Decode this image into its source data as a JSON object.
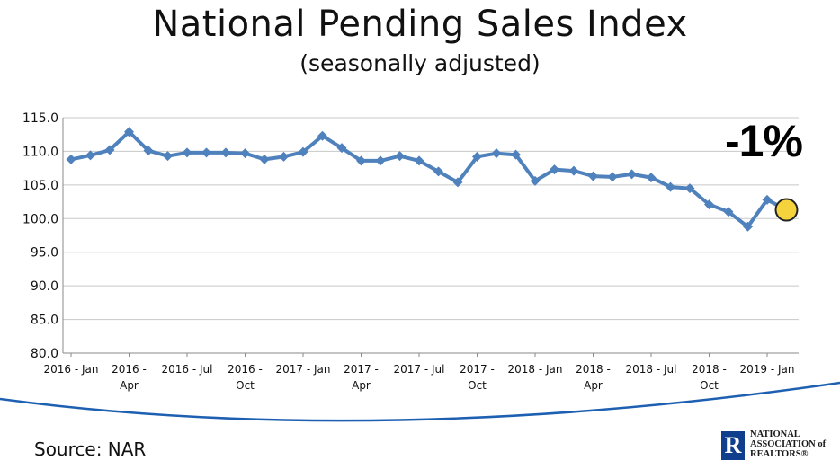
{
  "header": {
    "title": "National Pending Sales Index",
    "subtitle": "(seasonally adjusted)"
  },
  "annotation": "-1%",
  "footer": {
    "source": "Source: NAR",
    "logo_text": "NATIONAL\nASSOCIATION of\nREALTORS®",
    "logo_mark": "R"
  },
  "colors": {
    "line": "#4f81bd",
    "highlight_marker": "#f5d33c",
    "grid": "#c8c8c8"
  },
  "chart_data": {
    "type": "line",
    "title": "National Pending Sales Index",
    "subtitle": "(seasonally adjusted)",
    "ylim": [
      80,
      115
    ],
    "yticks": [
      "80.0",
      "85.0",
      "90.0",
      "95.0",
      "100.0",
      "105.0",
      "110.0",
      "115.0"
    ],
    "xtick_labels": [
      {
        "index": 0,
        "lines": [
          "2016 - Jan"
        ]
      },
      {
        "index": 3,
        "lines": [
          "2016 -",
          "Apr"
        ]
      },
      {
        "index": 6,
        "lines": [
          "2016 - Jul"
        ]
      },
      {
        "index": 9,
        "lines": [
          "2016 -",
          "Oct"
        ]
      },
      {
        "index": 12,
        "lines": [
          "2017 - Jan"
        ]
      },
      {
        "index": 15,
        "lines": [
          "2017 -",
          "Apr"
        ]
      },
      {
        "index": 18,
        "lines": [
          "2017 - Jul"
        ]
      },
      {
        "index": 21,
        "lines": [
          "2017 -",
          "Oct"
        ]
      },
      {
        "index": 24,
        "lines": [
          "2018 - Jan"
        ]
      },
      {
        "index": 27,
        "lines": [
          "2018 -",
          "Apr"
        ]
      },
      {
        "index": 30,
        "lines": [
          "2018 - Jul"
        ]
      },
      {
        "index": 33,
        "lines": [
          "2018 -",
          "Oct"
        ]
      },
      {
        "index": 36,
        "lines": [
          "2019 - Jan"
        ]
      }
    ],
    "x": [
      "2016-01",
      "2016-02",
      "2016-03",
      "2016-04",
      "2016-05",
      "2016-06",
      "2016-07",
      "2016-08",
      "2016-09",
      "2016-10",
      "2016-11",
      "2016-12",
      "2017-01",
      "2017-02",
      "2017-03",
      "2017-04",
      "2017-05",
      "2017-06",
      "2017-07",
      "2017-08",
      "2017-09",
      "2017-10",
      "2017-11",
      "2017-12",
      "2018-01",
      "2018-02",
      "2018-03",
      "2018-04",
      "2018-05",
      "2018-06",
      "2018-07",
      "2018-08",
      "2018-09",
      "2018-10",
      "2018-11",
      "2018-12",
      "2019-01",
      "2019-02"
    ],
    "series": [
      {
        "values": [
          108.8,
          109.4,
          110.2,
          112.9,
          110.1,
          109.3,
          109.8,
          109.8,
          109.8,
          109.7,
          108.8,
          109.2,
          109.9,
          112.3,
          110.5,
          108.6,
          108.6,
          109.3,
          108.6,
          107.0,
          105.4,
          109.2,
          109.7,
          109.5,
          105.6,
          107.3,
          107.1,
          106.3,
          106.2,
          106.6,
          106.1,
          104.7,
          104.5,
          102.1,
          101.0,
          98.8,
          102.8,
          101.3
        ]
      }
    ],
    "highlight_index": 37,
    "grid": true,
    "legend": "none"
  }
}
